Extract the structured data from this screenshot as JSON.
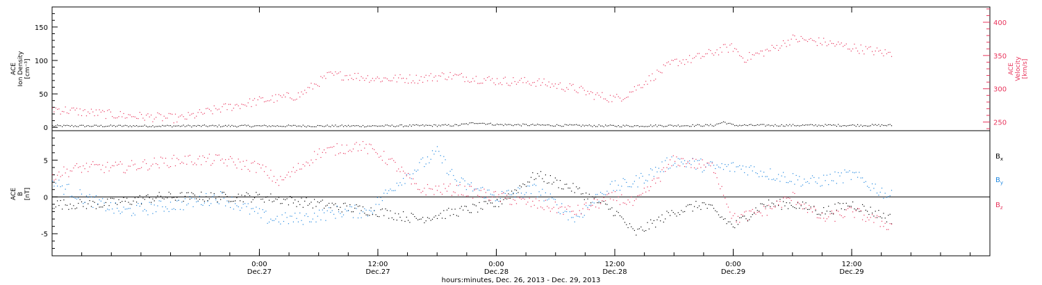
{
  "colors": {
    "black": "#000000",
    "red": "#e8335b",
    "blue": "#1f87e0",
    "axis": "#000000"
  },
  "x_axis": {
    "start": "2013-12-26T03:00",
    "end": "2013-12-30T02:00",
    "data_end": "2013-12-29T16:00",
    "xlabel": "hours:minutes, Dec. 26, 2013 - Dec. 29, 2013",
    "ticks": [
      {
        "t": "2013-12-27T00:00",
        "time": "0:00",
        "date": "Dec.27"
      },
      {
        "t": "2013-12-27T12:00",
        "time": "12:00",
        "date": "Dec.27"
      },
      {
        "t": "2013-12-28T00:00",
        "time": "0:00",
        "date": "Dec.28"
      },
      {
        "t": "2013-12-28T12:00",
        "time": "12:00",
        "date": "Dec.28"
      },
      {
        "t": "2013-12-29T00:00",
        "time": "0:00",
        "date": "Dec.29"
      },
      {
        "t": "2013-12-29T12:00",
        "time": "12:00",
        "date": "Dec.29"
      }
    ]
  },
  "chart_data": [
    {
      "type": "scatter",
      "panel": "top",
      "left_axis": {
        "label_lines": [
          "ACE",
          "Ion Density",
          "[cm⁻³]"
        ],
        "ylim": [
          -5,
          180
        ],
        "ticks": [
          0,
          50,
          100,
          150
        ]
      },
      "right_axis": {
        "label_lines": [
          "ACE",
          "Velocity",
          "[km/s]"
        ],
        "ylim": [
          237,
          423
        ],
        "ticks": [
          250,
          300,
          350,
          400
        ]
      },
      "series": [
        {
          "axis": "left",
          "color": "black",
          "x": [
            "2013-12-26T03:00",
            "2013-12-26T12:00",
            "2013-12-27T00:00",
            "2013-12-27T12:00",
            "2013-12-27T20:00",
            "2013-12-27T22:00",
            "2013-12-28T00:00",
            "2013-12-28T12:00",
            "2013-12-28T22:00",
            "2013-12-28T23:00",
            "2013-12-29T00:00",
            "2013-12-29T16:00"
          ],
          "y": [
            2,
            2,
            2,
            2,
            3,
            7,
            4,
            2,
            3,
            8,
            3,
            3
          ]
        },
        {
          "axis": "right",
          "color": "red",
          "x": [
            "2013-12-26T03:00",
            "2013-12-26T06:00",
            "2013-12-26T10:00",
            "2013-12-26T16:00",
            "2013-12-26T20:00",
            "2013-12-27T00:00",
            "2013-12-27T04:00",
            "2013-12-27T07:00",
            "2013-12-27T09:00",
            "2013-12-27T12:00",
            "2013-12-27T16:00",
            "2013-12-27T19:00",
            "2013-12-28T00:00",
            "2013-12-28T04:00",
            "2013-12-28T08:00",
            "2013-12-28T10:00",
            "2013-12-28T12:00",
            "2013-12-28T13:00",
            "2013-12-28T14:00",
            "2013-12-28T18:00",
            "2013-12-28T20:00",
            "2013-12-28T22:00",
            "2013-12-28T23:00",
            "2013-12-29T00:00",
            "2013-12-29T01:00",
            "2013-12-29T04:00",
            "2013-12-29T06:00",
            "2013-12-29T09:00",
            "2013-12-29T12:00",
            "2013-12-29T16:00"
          ],
          "y": [
            270,
            265,
            260,
            255,
            270,
            282,
            290,
            320,
            320,
            315,
            315,
            320,
            312,
            310,
            300,
            290,
            285,
            290,
            300,
            340,
            345,
            355,
            360,
            362,
            345,
            360,
            375,
            370,
            362,
            352
          ]
        }
      ]
    },
    {
      "type": "scatter",
      "panel": "bottom",
      "left_axis": {
        "label_lines": [
          "ACE",
          "B",
          "[nT]"
        ],
        "ylim": [
          -8,
          9
        ],
        "ticks": [
          -5,
          0,
          5
        ]
      },
      "legend": {
        "placement": "right",
        "items": [
          {
            "name": "B",
            "sub": "x",
            "color": "black"
          },
          {
            "name": "B",
            "sub": "y",
            "color": "blue"
          },
          {
            "name": "B",
            "sub": "z",
            "color": "red"
          }
        ]
      },
      "series": [
        {
          "name": "Bx",
          "color": "black",
          "x": [
            "2013-12-26T03:00",
            "2013-12-26T08:00",
            "2013-12-26T14:00",
            "2013-12-26T20:00",
            "2013-12-27T00:00",
            "2013-12-27T06:00",
            "2013-12-27T12:00",
            "2013-12-27T16:00",
            "2013-12-27T20:00",
            "2013-12-28T00:00",
            "2013-12-28T04:00",
            "2013-12-28T08:00",
            "2013-12-28T12:00",
            "2013-12-28T14:00",
            "2013-12-28T18:00",
            "2013-12-28T21:00",
            "2013-12-29T00:00",
            "2013-12-29T03:00",
            "2013-12-29T06:00",
            "2013-12-29T09:00",
            "2013-12-29T12:00",
            "2013-12-29T16:00"
          ],
          "y": [
            -1,
            -1,
            0,
            0,
            0,
            -1,
            -2,
            -3,
            -2,
            -1,
            3,
            1,
            -2,
            -5,
            -2,
            -1,
            -4,
            -1,
            -1,
            -2,
            -1,
            -3
          ]
        },
        {
          "name": "By",
          "color": "blue",
          "x": [
            "2013-12-26T03:00",
            "2013-12-26T06:00",
            "2013-12-26T10:00",
            "2013-12-26T16:00",
            "2013-12-26T20:00",
            "2013-12-27T01:00",
            "2013-12-27T04:00",
            "2013-12-27T08:00",
            "2013-12-27T11:00",
            "2013-12-27T14:00",
            "2013-12-27T18:00",
            "2013-12-27T20:00",
            "2013-12-28T00:00",
            "2013-12-28T04:00",
            "2013-12-28T08:00",
            "2013-12-28T11:00",
            "2013-12-28T14:00",
            "2013-12-28T18:00",
            "2013-12-28T22:00",
            "2013-12-29T01:00",
            "2013-12-29T04:00",
            "2013-12-29T08:00",
            "2013-12-29T12:00",
            "2013-12-29T16:00"
          ],
          "y": [
            2,
            0,
            -2,
            -1,
            0,
            -3,
            -3,
            -2,
            -2,
            2,
            6,
            2,
            0,
            1,
            -3,
            1,
            2,
            5,
            4,
            4,
            3,
            2,
            3,
            0
          ]
        },
        {
          "name": "Bz",
          "color": "red",
          "x": [
            "2013-12-26T03:00",
            "2013-12-26T06:00",
            "2013-12-26T10:00",
            "2013-12-26T16:00",
            "2013-12-26T20:00",
            "2013-12-27T00:00",
            "2013-12-27T02:00",
            "2013-12-27T06:00",
            "2013-12-27T10:00",
            "2013-12-27T12:00",
            "2013-12-27T14:00",
            "2013-12-27T16:00",
            "2013-12-27T20:00",
            "2013-12-28T00:00",
            "2013-12-28T04:00",
            "2013-12-28T08:00",
            "2013-12-28T12:00",
            "2013-12-28T14:00",
            "2013-12-28T18:00",
            "2013-12-28T22:00",
            "2013-12-29T00:00",
            "2013-12-29T03:00",
            "2013-12-29T06:00",
            "2013-12-29T09:00",
            "2013-12-29T12:00",
            "2013-12-29T16:00"
          ],
          "y": [
            3,
            4,
            4,
            5,
            5,
            4,
            2,
            6,
            7,
            6,
            4,
            1,
            1,
            0,
            -1,
            -2,
            0,
            -1,
            5,
            4,
            -3,
            -2,
            0,
            -3,
            -2,
            -4
          ]
        }
      ]
    }
  ]
}
